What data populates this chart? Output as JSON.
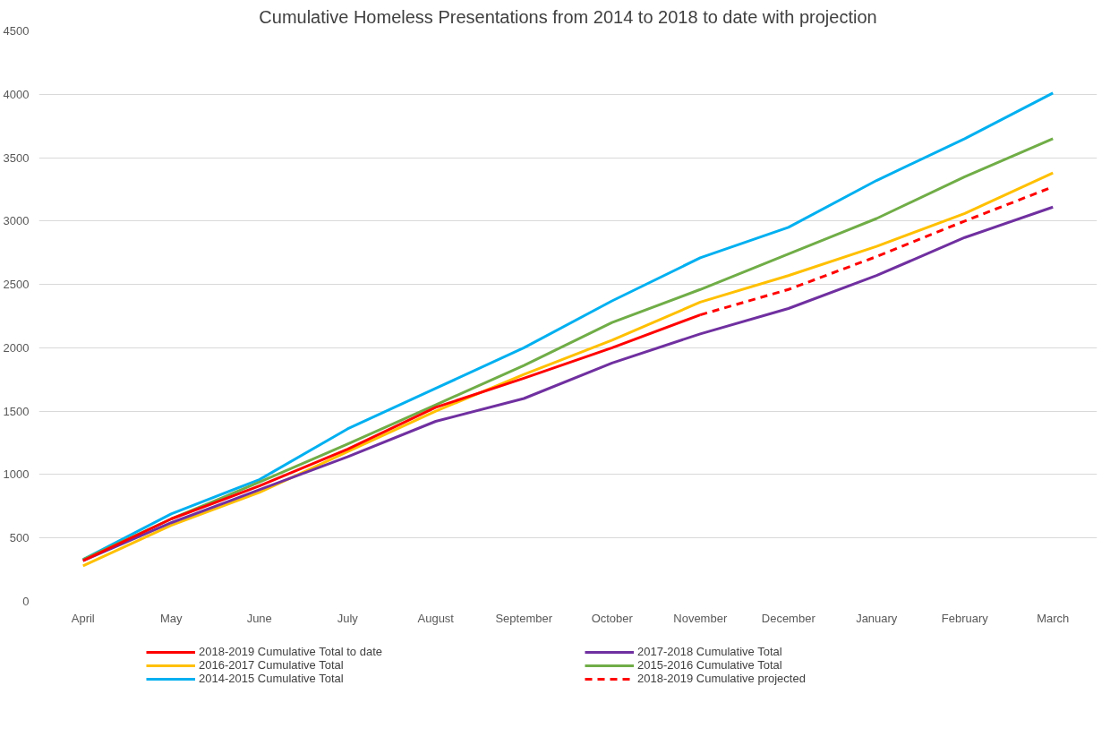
{
  "chart_data": {
    "type": "line",
    "title": "Cumulative Homeless Presentations from 2014 to 2018 to date with projection",
    "categories": [
      "April",
      "May",
      "June",
      "July",
      "August",
      "September",
      "October",
      "November",
      "December",
      "January",
      "February",
      "March"
    ],
    "ylim": [
      0,
      4500
    ],
    "yticks": [
      0,
      500,
      1000,
      1500,
      2000,
      2500,
      3000,
      3500,
      4000,
      4500
    ],
    "grid": "y",
    "legend": "bottom",
    "marker": "none",
    "series": [
      {
        "name": "2018-2019 Cumulative Total to date",
        "color": "#ff0000",
        "line_style": "solid",
        "values": [
          320,
          650,
          910,
          1200,
          1530,
          1760,
          2000,
          2260,
          null,
          null,
          null,
          null
        ]
      },
      {
        "name": "2017-2018 Cumulative Total",
        "color": "#7030a0",
        "line_style": "solid",
        "values": [
          320,
          620,
          880,
          1140,
          1420,
          1600,
          1880,
          2110,
          2310,
          2570,
          2870,
          3110
        ]
      },
      {
        "name": "2016-2017 Cumulative Total",
        "color": "#ffc000",
        "line_style": "solid",
        "values": [
          280,
          600,
          860,
          1180,
          1500,
          1790,
          2060,
          2360,
          2570,
          2800,
          3060,
          3380
        ]
      },
      {
        "name": "2015-2016 Cumulative Total",
        "color": "#70ad47",
        "line_style": "solid",
        "values": [
          330,
          650,
          940,
          1240,
          1550,
          1860,
          2200,
          2460,
          2740,
          3020,
          3350,
          3650
        ]
      },
      {
        "name": "2014-2015 Cumulative Total",
        "color": "#00b0f0",
        "line_style": "solid",
        "values": [
          330,
          690,
          960,
          1360,
          1680,
          2000,
          2370,
          2710,
          2950,
          3320,
          3650,
          4010
        ]
      },
      {
        "name": "2018-2019 Cumulative projected",
        "color": "#ff0000",
        "line_style": "dashed",
        "values": [
          null,
          null,
          null,
          null,
          null,
          null,
          null,
          2260,
          2460,
          2720,
          3000,
          3270
        ]
      }
    ]
  }
}
